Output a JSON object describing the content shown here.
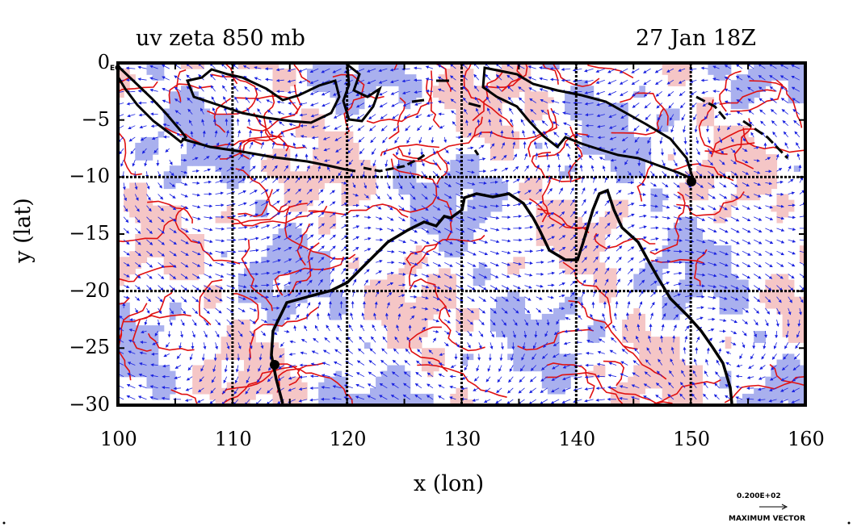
{
  "title_left": "uv zeta 850 mb",
  "title_right": "27 Jan 18Z",
  "xlabel": "x (lon)",
  "ylabel": "y (lat)",
  "x_ticks": [
    "100",
    "110",
    "120",
    "130",
    "140",
    "150",
    "160"
  ],
  "y_ticks": [
    "0",
    "−5",
    "−10",
    "−15",
    "−20",
    "−25",
    "−30"
  ],
  "eq_label": "EQ",
  "max_vector_value": "0.200E+02",
  "max_vector_label": "MAXIMUM VECTOR",
  "colors": {
    "positive_contour": "#e01010",
    "positive_fill": "#f5c6c6",
    "negative_fill": "#a9b0ee",
    "vector": "#1a22e0",
    "coast": "#000000"
  },
  "chart_data": {
    "type": "map",
    "field": "relative vorticity (zeta) with wind vectors (u,v) at 850 mb",
    "xlim": [
      100,
      160
    ],
    "ylim": [
      -30,
      0
    ],
    "grid_interval": 10,
    "grid": true
  }
}
